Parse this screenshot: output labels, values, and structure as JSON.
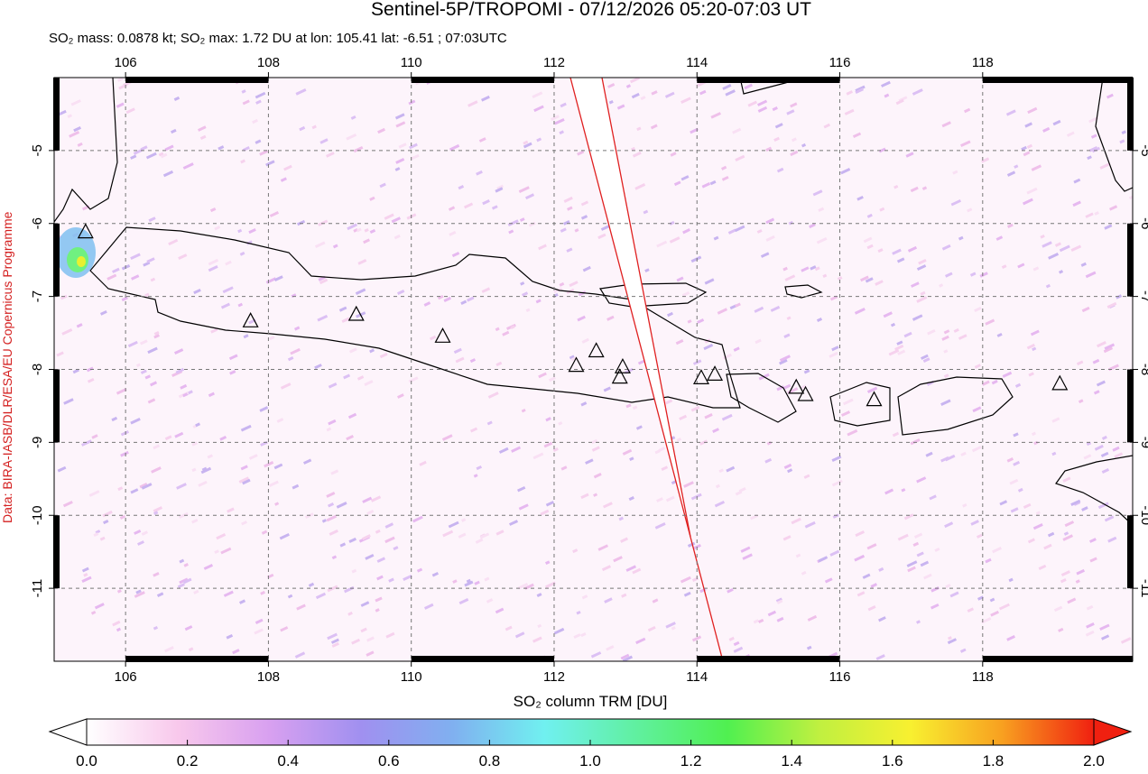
{
  "title": "Sentinel-5P/TROPOMI - 07/12/2026 05:20-07:03 UT",
  "subtitle": "SO₂ mass: 0.0878 kt; SO₂ max: 1.72 DU at lon: 105.41 lat: -6.51 ; 07:03UTC",
  "credit": "Data: BIRA-IASB/DLR/ESA/EU Copernicus Programme",
  "map": {
    "xlim": [
      105,
      120.1
    ],
    "ylim": [
      -12,
      -4
    ],
    "xticks": [
      106,
      108,
      110,
      112,
      114,
      116,
      118
    ],
    "yticks": [
      -5,
      -6,
      -7,
      -8,
      -9,
      -10,
      -11
    ],
    "volcanoes": {
      "lon": [
        105.44,
        107.75,
        109.23,
        110.44,
        112.31,
        112.59,
        112.96,
        112.92,
        114.06,
        114.25,
        115.39,
        115.52,
        116.48,
        119.08
      ],
      "lat": [
        -6.11,
        -7.33,
        -7.24,
        -7.54,
        -7.94,
        -7.74,
        -7.96,
        -8.1,
        -8.11,
        -8.06,
        -8.24,
        -8.34,
        -8.41,
        -8.19
      ]
    }
  },
  "colorbar": {
    "label": "SO₂ column TRM [DU]",
    "lim": [
      0,
      2
    ],
    "ticks": [
      {
        "value": 0,
        "label": "0.0"
      },
      {
        "value": 0.2,
        "label": "0.2"
      },
      {
        "value": 0.4,
        "label": "0.4"
      },
      {
        "value": 0.6,
        "label": "0.6"
      },
      {
        "value": 0.8,
        "label": "0.8"
      },
      {
        "value": 1,
        "label": "1.0"
      },
      {
        "value": 1.2,
        "label": "1.2"
      },
      {
        "value": 1.4,
        "label": "1.4"
      },
      {
        "value": 1.6,
        "label": "1.6"
      },
      {
        "value": 1.8,
        "label": "1.8"
      },
      {
        "value": 2,
        "label": "2.0"
      }
    ],
    "colors": [
      "#ffffff",
      "#f8c8ec",
      "#d8a0f0",
      "#a090f0",
      "#80b0f0",
      "#70f0f0",
      "#60f0a0",
      "#50f050",
      "#c0f040",
      "#f8f030",
      "#f8a020",
      "#f02010"
    ]
  }
}
